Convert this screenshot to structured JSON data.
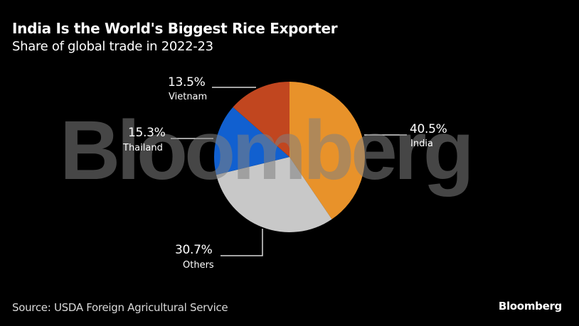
{
  "header": {
    "title": "India Is the World's Biggest Rice Exporter",
    "subtitle": "Share of global trade in 2022-23"
  },
  "watermark": {
    "text": "Bloomberg"
  },
  "footer": {
    "source": "Source: USDA Foreign Agricultural Service",
    "brand": "Bloomberg"
  },
  "labels": {
    "india": {
      "pct": "40.5%",
      "name": "India"
    },
    "others": {
      "pct": "30.7%",
      "name": "Others"
    },
    "thailand": {
      "pct": "15.3%",
      "name": "Thailand"
    },
    "vietnam": {
      "pct": "13.5%",
      "name": "Vietnam"
    }
  },
  "colors": {
    "background": "#000000",
    "india": "#E8922A",
    "others": "#C8C8C8",
    "thailand": "#1160D0",
    "vietnam": "#C1461F",
    "leader_line": "#D9D9D9"
  },
  "chart_data": {
    "type": "pie",
    "title": "India Is the World's Biggest Rice Exporter",
    "subtitle": "Share of global trade in 2022-23",
    "categories": [
      "India",
      "Others",
      "Thailand",
      "Vietnam"
    ],
    "values": [
      40.5,
      30.7,
      15.3,
      13.5
    ],
    "unit": "%",
    "colors": [
      "#E8922A",
      "#C8C8C8",
      "#1160D0",
      "#C1461F"
    ],
    "start_angle": "12 o'clock",
    "direction": "clockwise",
    "legend": "none (direct labels with leader lines)",
    "source": "Source: USDA Foreign Agricultural Service"
  }
}
